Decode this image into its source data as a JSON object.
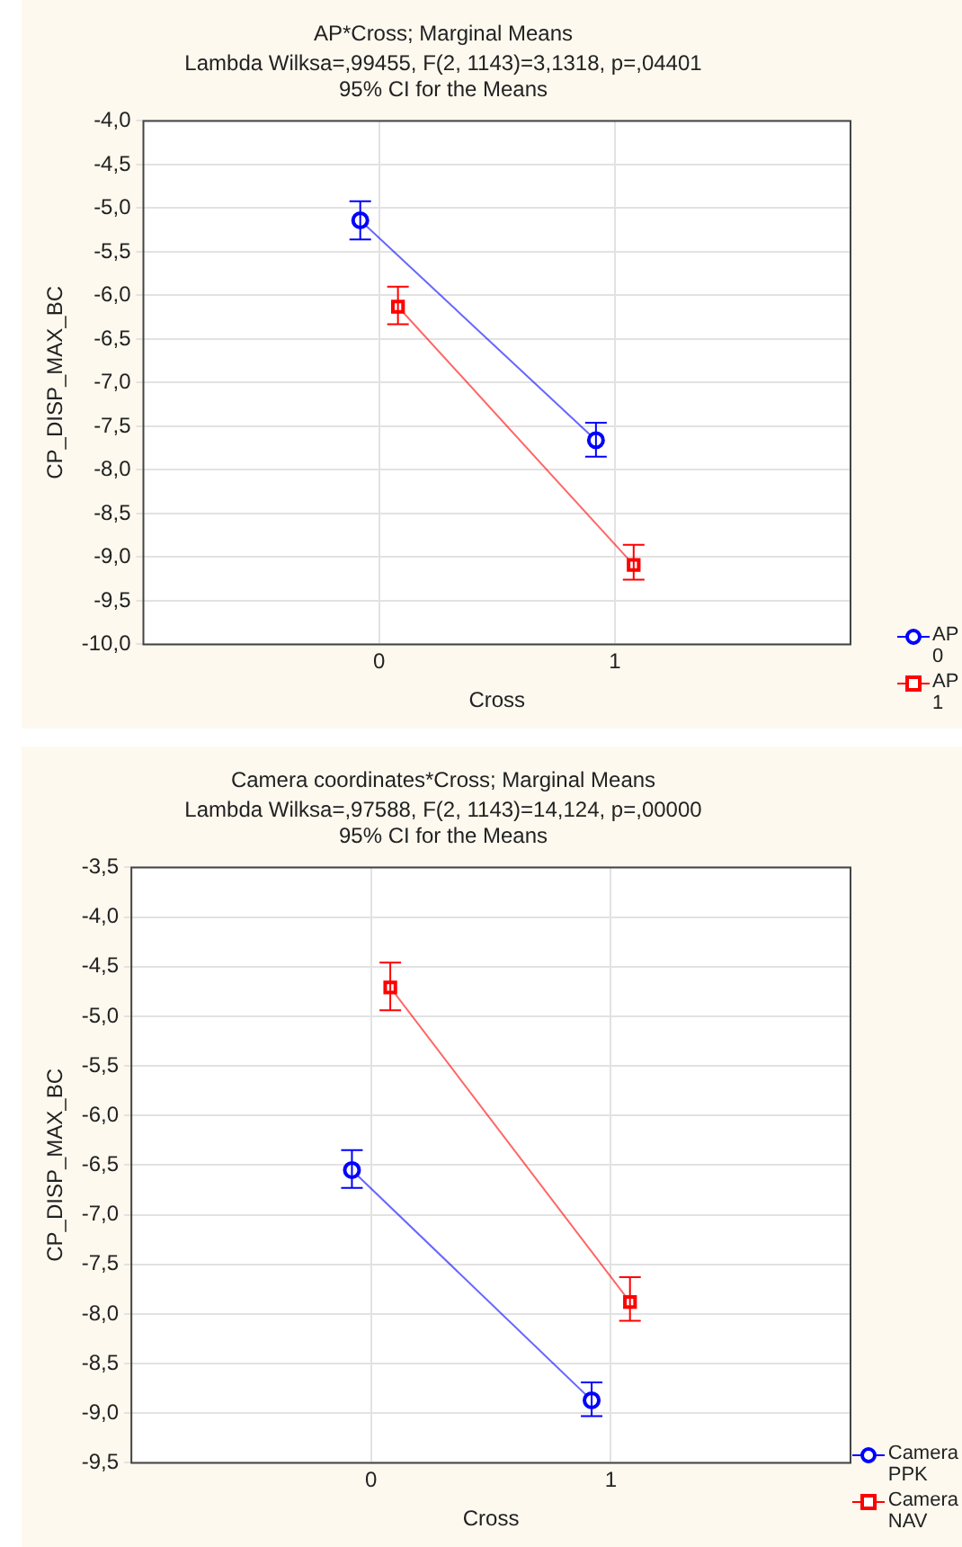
{
  "chart_data": [
    {
      "type": "line",
      "title": "AP*Cross; Marginal Means",
      "subtitle": "Lambda Wilksa=,99455, F(2, 1143)=3,1318, p=,04401\n95% CI for the Means",
      "xlabel": "Cross",
      "ylabel": "CP_DISP_MAX_BC",
      "categories": [
        "0",
        "1"
      ],
      "series": [
        {
          "name": "AP 0",
          "color": "#0000ff",
          "marker": "circle",
          "values": [
            -5.14,
            -7.66
          ],
          "errors": [
            [
              -5.36,
              -4.92
            ],
            [
              -7.85,
              -7.46
            ]
          ]
        },
        {
          "name": "AP 1",
          "color": "#ff0000",
          "marker": "square",
          "values": [
            -6.13,
            -9.09
          ],
          "errors": [
            [
              -6.33,
              -5.9
            ],
            [
              -9.26,
              -8.86
            ]
          ]
        }
      ],
      "ylim": [
        -10,
        -4
      ],
      "yticks": [
        {
          "value": -10,
          "label": "-10,0"
        },
        {
          "value": -9.5,
          "label": "-9,5"
        },
        {
          "value": -9,
          "label": "-9,0"
        },
        {
          "value": -8.5,
          "label": "-8,5"
        },
        {
          "value": -8,
          "label": "-8,0"
        },
        {
          "value": -7.5,
          "label": "-7,5"
        },
        {
          "value": -7,
          "label": "-7,0"
        },
        {
          "value": -6.5,
          "label": "-6,5"
        },
        {
          "value": -6,
          "label": "-6,0"
        },
        {
          "value": -5.5,
          "label": "-5,5"
        },
        {
          "value": -5,
          "label": "-5,0"
        },
        {
          "value": -4.5,
          "label": "-4,5"
        },
        {
          "value": -4,
          "label": "-4,0"
        }
      ],
      "grid": true,
      "legend": "bottom right"
    },
    {
      "type": "line",
      "title": "Camera coordinates*Cross; Marginal Means",
      "subtitle": "Lambda Wilksa=,97588, F(2, 1143)=14,124, p=,00000\n95% CI for the Means",
      "xlabel": "Cross",
      "ylabel": "CP_DISP_MAX_BC",
      "categories": [
        "0",
        "1"
      ],
      "series": [
        {
          "name": "Camera PPK",
          "color": "#0000ff",
          "marker": "circle",
          "values": [
            -6.55,
            -8.87
          ],
          "errors": [
            [
              -6.73,
              -6.35
            ],
            [
              -9.03,
              -8.69
            ]
          ]
        },
        {
          "name": "Camera NAV",
          "color": "#ff0000",
          "marker": "square",
          "values": [
            -4.71,
            -7.88
          ],
          "errors": [
            [
              -4.94,
              -4.46
            ],
            [
              -8.07,
              -7.63
            ]
          ]
        }
      ],
      "ylim": [
        -9.5,
        -3.5
      ],
      "yticks": [
        {
          "value": -9.5,
          "label": "-9,5"
        },
        {
          "value": -9,
          "label": "-9,0"
        },
        {
          "value": -8.5,
          "label": "-8,5"
        },
        {
          "value": -8,
          "label": "-8,0"
        },
        {
          "value": -7.5,
          "label": "-7,5"
        },
        {
          "value": -7,
          "label": "-7,0"
        },
        {
          "value": -6.5,
          "label": "-6,5"
        },
        {
          "value": -6,
          "label": "-6,0"
        },
        {
          "value": -5.5,
          "label": "-5,5"
        },
        {
          "value": -5,
          "label": "-5,0"
        },
        {
          "value": -4.5,
          "label": "-4,5"
        },
        {
          "value": -4,
          "label": "-4,0"
        },
        {
          "value": -3.5,
          "label": "-3,5"
        }
      ],
      "grid": true,
      "legend": "bottom right"
    }
  ]
}
